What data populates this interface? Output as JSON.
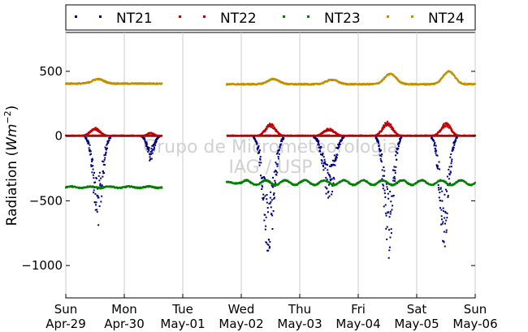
{
  "chart_data": {
    "type": "scatter",
    "ylabel_text": "Radiation (",
    "ylabel_unit": "Wm",
    "ylabel_exp": "−2",
    "ylabel_close": ")",
    "ylim": [
      -1250,
      800
    ],
    "yticks": [
      {
        "value": 500,
        "label": "500"
      },
      {
        "value": 0,
        "label": "0"
      },
      {
        "value": -500,
        "label": "−500"
      },
      {
        "value": -1000,
        "label": "−1000"
      }
    ],
    "xlim": [
      0,
      7
    ],
    "xticks": [
      {
        "value": 0,
        "day": "Sun",
        "date": "Apr-29"
      },
      {
        "value": 1,
        "day": "Mon",
        "date": "Apr-30"
      },
      {
        "value": 2,
        "day": "Tue",
        "date": "May-01"
      },
      {
        "value": 3,
        "day": "Wed",
        "date": "May-02"
      },
      {
        "value": 4,
        "day": "Thu",
        "date": "May-03"
      },
      {
        "value": 5,
        "day": "Fri",
        "date": "May-04"
      },
      {
        "value": 6,
        "day": "Sat",
        "date": "May-05"
      },
      {
        "value": 7,
        "day": "Sun",
        "date": "May-06"
      }
    ],
    "grid": "vertical",
    "legend_position": "top",
    "watermark": [
      "Grupo de Micrometeorologia",
      "IAG / USP"
    ],
    "gaps": [
      [
        1.65,
        2.75
      ]
    ],
    "series": [
      {
        "name": "NT21",
        "color": "#00007f",
        "kind": "downward-negative",
        "dips": [
          {
            "day": 0,
            "center": 0.55,
            "width": 0.11,
            "min": -680
          },
          {
            "day": 1,
            "center": 0.45,
            "width": 0.08,
            "min": -190
          },
          {
            "day": 3,
            "center": 0.47,
            "width": 0.13,
            "min": -920
          },
          {
            "day": 4,
            "center": 0.5,
            "width": 0.13,
            "min": -510
          },
          {
            "day": 5,
            "center": 0.52,
            "width": 0.11,
            "min": -910
          },
          {
            "day": 6,
            "center": 0.47,
            "width": 0.11,
            "min": -830
          }
        ]
      },
      {
        "name": "NT22",
        "color": "#bf0000",
        "kind": "upward-positive",
        "bumps": [
          {
            "day": 0,
            "center": 0.5,
            "width": 0.12,
            "max": 60
          },
          {
            "day": 1,
            "center": 0.45,
            "width": 0.08,
            "max": 25
          },
          {
            "day": 3,
            "center": 0.5,
            "width": 0.12,
            "max": 90
          },
          {
            "day": 4,
            "center": 0.5,
            "width": 0.13,
            "max": 55
          },
          {
            "day": 5,
            "center": 0.5,
            "width": 0.12,
            "max": 105
          },
          {
            "day": 6,
            "center": 0.5,
            "width": 0.12,
            "max": 95
          }
        ]
      },
      {
        "name": "NT23",
        "color": "#007f00",
        "kind": "baseline",
        "segments": [
          {
            "from": 0.0,
            "to": 1.65,
            "level": -395
          },
          {
            "from": 2.75,
            "to": 7.0,
            "level": -360
          }
        ]
      },
      {
        "name": "NT24",
        "color": "#bf9000",
        "kind": "baseline",
        "segments": [
          {
            "from": 0.0,
            "to": 1.65,
            "level": 405
          },
          {
            "from": 2.75,
            "to": 7.0,
            "level": 400
          }
        ],
        "bumps": [
          {
            "day": 0,
            "center": 0.55,
            "width": 0.14,
            "max": 440
          },
          {
            "day": 3,
            "center": 0.55,
            "width": 0.14,
            "max": 440
          },
          {
            "day": 4,
            "center": 0.55,
            "width": 0.14,
            "max": 435
          },
          {
            "day": 5,
            "center": 0.55,
            "width": 0.14,
            "max": 480
          },
          {
            "day": 6,
            "center": 0.55,
            "width": 0.14,
            "max": 500
          }
        ]
      }
    ]
  }
}
